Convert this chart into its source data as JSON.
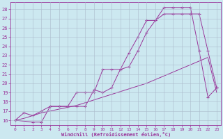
{
  "xlabel": "Windchill (Refroidissement éolien,°C)",
  "bg_color": "#cce8f0",
  "line_color": "#993399",
  "grid_color": "#aabbcc",
  "xlim": [
    -0.5,
    23.5
  ],
  "ylim": [
    15.5,
    28.8
  ],
  "xticks": [
    0,
    1,
    2,
    3,
    4,
    5,
    6,
    7,
    8,
    9,
    10,
    11,
    12,
    13,
    14,
    15,
    16,
    17,
    18,
    19,
    20,
    21,
    22,
    23
  ],
  "yticks": [
    16,
    17,
    18,
    19,
    20,
    21,
    22,
    23,
    24,
    25,
    26,
    27,
    28
  ],
  "series": [
    {
      "x": [
        0,
        1,
        2,
        3,
        4,
        5,
        6,
        7,
        8,
        9,
        10,
        11,
        12,
        13,
        14,
        15,
        16,
        17,
        18,
        19,
        20,
        21,
        22,
        23
      ],
      "y": [
        16.0,
        16.8,
        16.5,
        17.0,
        17.5,
        17.5,
        17.5,
        17.5,
        17.5,
        19.3,
        19.0,
        19.5,
        21.5,
        21.8,
        23.5,
        25.5,
        26.8,
        28.2,
        28.2,
        28.2,
        28.2,
        23.5,
        18.5,
        19.5
      ],
      "marker": "+"
    },
    {
      "x": [
        0,
        1,
        2,
        3,
        4,
        5,
        6,
        7,
        8,
        9,
        10,
        11,
        12,
        13,
        14,
        15,
        16,
        17,
        18,
        19,
        20,
        21,
        22,
        23
      ],
      "y": [
        16.0,
        16.2,
        16.5,
        16.8,
        17.0,
        17.2,
        17.4,
        17.6,
        17.9,
        18.2,
        18.5,
        18.8,
        19.1,
        19.4,
        19.7,
        20.0,
        20.4,
        20.8,
        21.2,
        21.6,
        22.0,
        22.4,
        22.8,
        19.0
      ],
      "marker": null
    },
    {
      "x": [
        0,
        2,
        3,
        4,
        5,
        6,
        7,
        8,
        9,
        10,
        11,
        12,
        13,
        14,
        15,
        16,
        17,
        18,
        19,
        20,
        21,
        22,
        23
      ],
      "y": [
        16.0,
        15.8,
        15.8,
        17.5,
        17.5,
        17.5,
        19.0,
        19.0,
        19.0,
        21.5,
        21.5,
        21.5,
        23.3,
        25.0,
        26.8,
        26.8,
        27.5,
        27.5,
        27.5,
        27.5,
        27.5,
        23.5,
        19.5
      ],
      "marker": "+"
    }
  ]
}
